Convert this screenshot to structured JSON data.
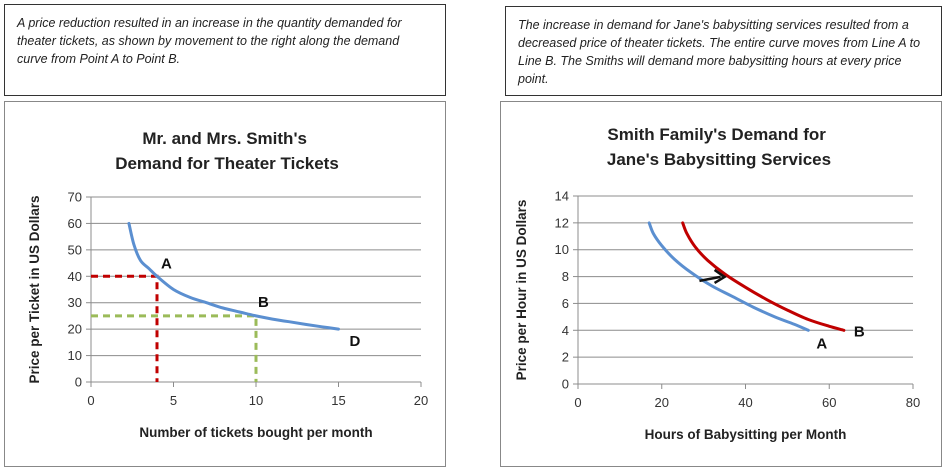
{
  "notes": {
    "left": "A price reduction resulted in an increase in the quantity demanded for theater tickets, as shown by movement to the right along the demand curve from Point A to Point B.",
    "right": "The increase in demand for Jane's babysitting services resulted from a decreased price of theater tickets. The entire curve moves from Line A to Line B. The Smiths will demand more babysitting hours at every price point."
  },
  "chart_data": [
    {
      "type": "line",
      "title": "Mr. and Mrs. Smith's Demand for Theater Tickets",
      "xlabel": "Number of tickets bought per month",
      "ylabel": "Price per Ticket in US Dollars",
      "xlim": [
        0,
        20
      ],
      "ylim": [
        0,
        70
      ],
      "xticks": [
        0,
        5,
        10,
        15,
        20
      ],
      "yticks": [
        0,
        10,
        20,
        30,
        40,
        50,
        60,
        70
      ],
      "grid": "horizontal",
      "colors": {
        "curve": "#5b8fd0",
        "guideA": "#c00000",
        "guideB": "#9bbb59"
      },
      "series": [
        {
          "x": [
            2.3,
            2.6,
            3.0,
            3.5,
            4.0,
            5.0,
            6.0,
            7.0,
            8.0,
            9.0,
            10.0,
            11.0,
            12.0,
            13.0,
            14.0,
            15.0
          ],
          "y": [
            60,
            52,
            46,
            43,
            40,
            35,
            32,
            30,
            28,
            26.5,
            25,
            23.8,
            22.8,
            21.8,
            20.9,
            20
          ]
        }
      ],
      "annotations": [
        {
          "label": "A",
          "x": 4,
          "y": 40
        },
        {
          "label": "B",
          "x": 10,
          "y": 25
        },
        {
          "label": "D",
          "x": 15,
          "y": 20
        }
      ]
    },
    {
      "type": "line",
      "title": "Smith Family's Demand for Jane's Babysitting Services",
      "xlabel": "Hours of Babysitting per Month",
      "ylabel": "Price per Hour in US Dollars",
      "xlim": [
        0,
        80
      ],
      "ylim": [
        0,
        14
      ],
      "xticks": [
        0,
        20,
        40,
        60,
        80
      ],
      "yticks": [
        0,
        2,
        4,
        6,
        8,
        10,
        12,
        14
      ],
      "grid": "horizontal",
      "colors": {
        "A": "#5b8fd0",
        "B": "#c00000",
        "arrow": "#111111"
      },
      "series": [
        {
          "label": "A",
          "x": [
            17,
            18,
            20,
            23,
            27,
            32,
            37,
            42,
            47,
            52,
            55
          ],
          "y": [
            12,
            11.2,
            10.3,
            9.3,
            8.3,
            7.3,
            6.5,
            5.7,
            5.0,
            4.4,
            4
          ]
        },
        {
          "label": "B",
          "x": [
            25,
            26,
            28,
            31,
            35,
            40,
            45,
            50,
            55,
            60,
            63.5
          ],
          "y": [
            12,
            11.2,
            10.2,
            9.2,
            8.2,
            7.2,
            6.3,
            5.5,
            4.8,
            4.3,
            4
          ]
        }
      ]
    }
  ]
}
